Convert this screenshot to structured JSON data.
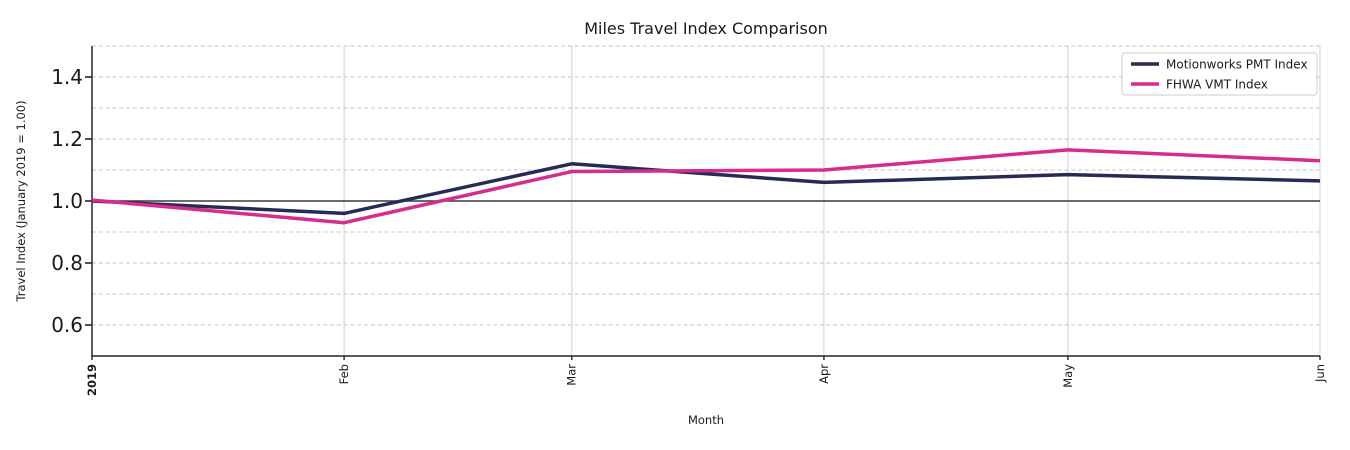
{
  "chart_data": {
    "type": "line",
    "title": "Miles Travel Index Comparison",
    "xlabel": "Month",
    "ylabel": "Travel Index (January 2019 = 1.00)",
    "x_tick_labels": [
      "2019",
      "Feb",
      "Mar",
      "Apr",
      "May",
      "Jun"
    ],
    "x_days": [
      0,
      31,
      59,
      90,
      120,
      151
    ],
    "ylim": [
      0.5,
      1.5
    ],
    "ytick_labels": [
      "0.6",
      "0.8",
      "1.0",
      "1.2",
      "1.4"
    ],
    "yticks_major": [
      0.6,
      0.8,
      1.0,
      1.2,
      1.4
    ],
    "grid_step": 0.1,
    "reference_line_y": 1.0,
    "grid": "on",
    "legend_position": "upper right",
    "series": [
      {
        "name": "Motionworks PMT Index",
        "color": "#262a56",
        "values": [
          1.0,
          0.96,
          1.12,
          1.06,
          1.085,
          1.065
        ]
      },
      {
        "name": "FHWA VMT Index",
        "color": "#d62c8b",
        "values": [
          1.003,
          0.93,
          1.095,
          1.1,
          1.165,
          1.13
        ]
      }
    ]
  },
  "style": {
    "grid_color_h": "#c4c4c4",
    "grid_color_v": "#d0d0d0",
    "spine_color": "#262626",
    "reference_line_color": "#3a3a3a"
  }
}
